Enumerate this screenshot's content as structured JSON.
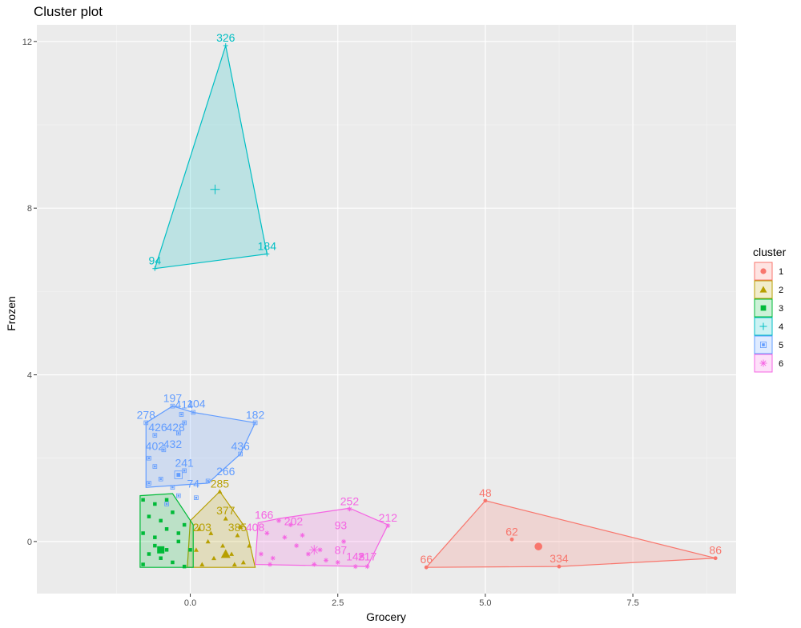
{
  "chart_data": {
    "type": "scatter",
    "title": "Cluster plot",
    "xlabel": "Grocery",
    "ylabel": "Frozen",
    "xlim": [
      -2.6,
      9.25
    ],
    "ylim": [
      -1.25,
      12.4
    ],
    "x_ticks": [
      0.0,
      2.5,
      5.0,
      7.5
    ],
    "x_tick_labels": [
      "0.0",
      "2.5",
      "5.0",
      "7.5"
    ],
    "y_ticks": [
      0,
      4,
      8,
      12
    ],
    "y_tick_labels": [
      "0",
      "4",
      "8",
      "12"
    ],
    "grid": true,
    "legend": {
      "title": "cluster",
      "position": "right"
    },
    "clusters": [
      {
        "name": "1",
        "color": "#F8766D",
        "shape": "circle",
        "center": [
          5.9,
          -0.12
        ],
        "hull": [
          [
            4.0,
            -0.62
          ],
          [
            5.0,
            0.98
          ],
          [
            8.9,
            -0.4
          ],
          [
            6.25,
            -0.6
          ]
        ],
        "points": [
          [
            4.0,
            -0.62
          ],
          [
            5.0,
            0.98
          ],
          [
            5.45,
            0.05
          ],
          [
            6.25,
            -0.6
          ],
          [
            8.9,
            -0.4
          ]
        ],
        "labels": [
          {
            "text": "48",
            "x": 5.0,
            "y": 0.98
          },
          {
            "text": "62",
            "x": 5.45,
            "y": 0.05
          },
          {
            "text": "66",
            "x": 4.0,
            "y": -0.62
          },
          {
            "text": "334",
            "x": 6.25,
            "y": -0.6
          },
          {
            "text": "86",
            "x": 8.9,
            "y": -0.4
          }
        ]
      },
      {
        "name": "2",
        "color": "#B79F00",
        "shape": "triangle",
        "center": [
          0.6,
          -0.3
        ],
        "hull": [
          [
            -0.05,
            -0.62
          ],
          [
            0.0,
            0.5
          ],
          [
            0.5,
            1.2
          ],
          [
            0.95,
            0.3
          ],
          [
            1.1,
            -0.62
          ]
        ],
        "points": [
          [
            0.5,
            1.2
          ],
          [
            0.6,
            0.55
          ],
          [
            0.35,
            0.2
          ],
          [
            0.8,
            0.15
          ],
          [
            0.1,
            -0.2
          ],
          [
            0.4,
            -0.4
          ],
          [
            0.7,
            -0.3
          ],
          [
            0.9,
            -0.5
          ],
          [
            0.2,
            -0.55
          ],
          [
            1.0,
            -0.1
          ],
          [
            0.55,
            -0.1
          ],
          [
            0.3,
            0.0
          ],
          [
            0.75,
            -0.55
          ],
          [
            0.15,
            0.3
          ],
          [
            0.85,
            0.35
          ]
        ],
        "labels": [
          {
            "text": "285",
            "x": 0.5,
            "y": 1.2
          },
          {
            "text": "377",
            "x": 0.6,
            "y": 0.55
          },
          {
            "text": "203",
            "x": 0.2,
            "y": 0.15
          },
          {
            "text": "385",
            "x": 0.8,
            "y": 0.15
          }
        ]
      },
      {
        "name": "3",
        "color": "#00BA38",
        "shape": "square",
        "center": [
          -0.5,
          -0.2
        ],
        "hull": [
          [
            -0.85,
            -0.62
          ],
          [
            -0.85,
            1.1
          ],
          [
            -0.3,
            1.15
          ],
          [
            0.05,
            0.4
          ],
          [
            0.05,
            -0.62
          ]
        ],
        "points": [
          [
            -0.8,
            1.0
          ],
          [
            -0.6,
            0.9
          ],
          [
            -0.4,
            1.0
          ],
          [
            -0.7,
            0.6
          ],
          [
            -0.5,
            0.5
          ],
          [
            -0.3,
            0.7
          ],
          [
            -0.1,
            0.4
          ],
          [
            -0.8,
            0.2
          ],
          [
            -0.6,
            0.1
          ],
          [
            -0.4,
            0.3
          ],
          [
            -0.2,
            0.0
          ],
          [
            0.0,
            -0.2
          ],
          [
            -0.7,
            -0.3
          ],
          [
            -0.5,
            -0.4
          ],
          [
            -0.3,
            -0.5
          ],
          [
            -0.1,
            -0.6
          ],
          [
            -0.8,
            -0.55
          ],
          [
            -0.6,
            -0.1
          ],
          [
            -0.4,
            -0.2
          ],
          [
            -0.2,
            0.2
          ]
        ],
        "labels": []
      },
      {
        "name": "4",
        "color": "#00BFC4",
        "shape": "plus",
        "center": [
          0.42,
          8.45
        ],
        "hull": [
          [
            -0.6,
            6.55
          ],
          [
            0.6,
            11.9
          ],
          [
            1.3,
            6.9
          ]
        ],
        "points": [
          [
            -0.6,
            6.55
          ],
          [
            0.6,
            11.9
          ],
          [
            1.3,
            6.9
          ]
        ],
        "labels": [
          {
            "text": "326",
            "x": 0.6,
            "y": 11.9
          },
          {
            "text": "94",
            "x": -0.6,
            "y": 6.55
          },
          {
            "text": "184",
            "x": 1.3,
            "y": 6.9
          }
        ]
      },
      {
        "name": "5",
        "color": "#619CFF",
        "shape": "boxed-square",
        "center": [
          -0.2,
          1.6
        ],
        "hull": [
          [
            -0.75,
            2.85
          ],
          [
            -0.3,
            3.25
          ],
          [
            0.05,
            3.1
          ],
          [
            1.1,
            2.85
          ],
          [
            0.85,
            2.1
          ],
          [
            0.3,
            1.4
          ],
          [
            -0.75,
            1.3
          ]
        ],
        "points": [
          [
            -0.75,
            2.85
          ],
          [
            -0.3,
            3.25
          ],
          [
            -0.15,
            3.05
          ],
          [
            0.05,
            3.1
          ],
          [
            1.1,
            2.85
          ],
          [
            0.85,
            2.1
          ],
          [
            -0.6,
            2.55
          ],
          [
            -0.45,
            2.2
          ],
          [
            -0.2,
            2.6
          ],
          [
            -0.1,
            2.85
          ],
          [
            -0.7,
            2.0
          ],
          [
            -0.6,
            1.8
          ],
          [
            -0.1,
            1.7
          ],
          [
            0.3,
            1.45
          ],
          [
            -0.7,
            1.4
          ],
          [
            -0.5,
            1.5
          ],
          [
            -0.3,
            1.3
          ],
          [
            -0.2,
            1.1
          ],
          [
            0.1,
            1.05
          ],
          [
            -0.4,
            0.9
          ]
        ],
        "labels": [
          {
            "text": "197",
            "x": -0.3,
            "y": 3.25
          },
          {
            "text": "414",
            "x": -0.1,
            "y": 3.1
          },
          {
            "text": "104",
            "x": 0.1,
            "y": 3.12
          },
          {
            "text": "278",
            "x": -0.75,
            "y": 2.85
          },
          {
            "text": "182",
            "x": 1.1,
            "y": 2.85
          },
          {
            "text": "426",
            "x": -0.55,
            "y": 2.55
          },
          {
            "text": "428",
            "x": -0.25,
            "y": 2.55
          },
          {
            "text": "402",
            "x": -0.6,
            "y": 2.1
          },
          {
            "text": "432",
            "x": -0.3,
            "y": 2.15
          },
          {
            "text": "436",
            "x": 0.85,
            "y": 2.1
          },
          {
            "text": "241",
            "x": -0.1,
            "y": 1.7
          },
          {
            "text": "266",
            "x": 0.6,
            "y": 1.5
          },
          {
            "text": "74",
            "x": 0.05,
            "y": 1.2
          }
        ]
      },
      {
        "name": "6",
        "color": "#F564E3",
        "shape": "asterisk",
        "center": [
          2.1,
          -0.2
        ],
        "hull": [
          [
            1.1,
            -0.55
          ],
          [
            1.15,
            0.45
          ],
          [
            1.5,
            0.55
          ],
          [
            2.7,
            0.8
          ],
          [
            3.35,
            0.4
          ],
          [
            3.0,
            -0.6
          ]
        ],
        "points": [
          [
            2.7,
            0.78
          ],
          [
            3.35,
            0.38
          ],
          [
            3.0,
            -0.6
          ],
          [
            2.8,
            -0.6
          ],
          [
            2.5,
            -0.5
          ],
          [
            2.2,
            -0.2
          ],
          [
            2.0,
            -0.3
          ],
          [
            1.8,
            -0.1
          ],
          [
            1.6,
            0.1
          ],
          [
            1.4,
            -0.4
          ],
          [
            1.3,
            0.2
          ],
          [
            1.2,
            -0.3
          ],
          [
            1.5,
            0.5
          ],
          [
            1.7,
            0.4
          ],
          [
            2.3,
            -0.45
          ],
          [
            2.6,
            0.0
          ],
          [
            2.9,
            -0.35
          ],
          [
            1.9,
            0.15
          ],
          [
            2.1,
            -0.55
          ],
          [
            1.35,
            -0.55
          ]
        ],
        "labels": [
          {
            "text": "252",
            "x": 2.7,
            "y": 0.78
          },
          {
            "text": "212",
            "x": 3.35,
            "y": 0.38
          },
          {
            "text": "93",
            "x": 2.55,
            "y": 0.2
          },
          {
            "text": "166",
            "x": 1.25,
            "y": 0.45
          },
          {
            "text": "202",
            "x": 1.75,
            "y": 0.3
          },
          {
            "text": "408",
            "x": 1.1,
            "y": 0.15
          },
          {
            "text": "87",
            "x": 2.55,
            "y": -0.4
          },
          {
            "text": "217",
            "x": 3.0,
            "y": -0.55
          },
          {
            "text": "143",
            "x": 2.8,
            "y": -0.55
          }
        ]
      }
    ]
  }
}
